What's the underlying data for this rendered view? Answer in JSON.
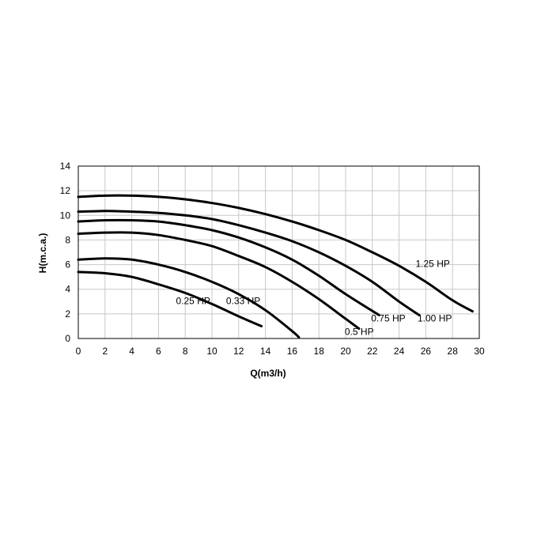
{
  "chart_data": {
    "type": "line",
    "title": "",
    "xlabel": "Q(m3/h)",
    "ylabel": "H(m.c.a.)",
    "xlim": [
      0,
      30
    ],
    "ylim": [
      0,
      14
    ],
    "x_ticks": [
      0,
      2,
      4,
      6,
      8,
      10,
      12,
      14,
      16,
      18,
      20,
      22,
      24,
      26,
      28,
      30
    ],
    "y_ticks": [
      0,
      2,
      4,
      6,
      8,
      10,
      12,
      14
    ],
    "grid": true,
    "legend": "none",
    "series": [
      {
        "name": "0.25 HP",
        "x": [
          0,
          2,
          4,
          6,
          8,
          10,
          12,
          13.7
        ],
        "y": [
          5.4,
          5.3,
          5.0,
          4.4,
          3.7,
          2.8,
          1.8,
          1.0
        ]
      },
      {
        "name": "0.33 HP",
        "x": [
          0,
          2,
          4,
          6,
          8,
          10,
          12,
          14,
          16,
          16.5
        ],
        "y": [
          6.4,
          6.5,
          6.4,
          6.0,
          5.4,
          4.6,
          3.6,
          2.3,
          0.6,
          0.1
        ]
      },
      {
        "name": "0.5 HP",
        "x": [
          0,
          2,
          4,
          6,
          8,
          10,
          12,
          14,
          16,
          18,
          20,
          21
        ],
        "y": [
          8.5,
          8.6,
          8.6,
          8.4,
          8.0,
          7.5,
          6.7,
          5.8,
          4.6,
          3.2,
          1.6,
          0.8
        ]
      },
      {
        "name": "0.75 HP",
        "x": [
          0,
          2,
          4,
          6,
          8,
          10,
          12,
          14,
          16,
          18,
          20,
          22.5
        ],
        "y": [
          9.5,
          9.6,
          9.6,
          9.5,
          9.2,
          8.8,
          8.2,
          7.4,
          6.4,
          5.1,
          3.6,
          1.9
        ]
      },
      {
        "name": "1.00 HP",
        "x": [
          0,
          2,
          4,
          6,
          8,
          10,
          12,
          14,
          16,
          18,
          20,
          22,
          24,
          25.5
        ],
        "y": [
          10.3,
          10.35,
          10.3,
          10.2,
          10.0,
          9.7,
          9.2,
          8.6,
          7.9,
          7.0,
          5.9,
          4.6,
          3.0,
          1.9
        ]
      },
      {
        "name": "1.25 HP",
        "x": [
          0,
          2,
          4,
          6,
          8,
          10,
          12,
          14,
          16,
          18,
          20,
          22,
          24,
          26,
          28,
          29.5
        ],
        "y": [
          11.5,
          11.6,
          11.6,
          11.5,
          11.3,
          11.0,
          10.6,
          10.1,
          9.5,
          8.8,
          8.0,
          7.0,
          5.9,
          4.6,
          3.1,
          2.2
        ]
      }
    ]
  }
}
